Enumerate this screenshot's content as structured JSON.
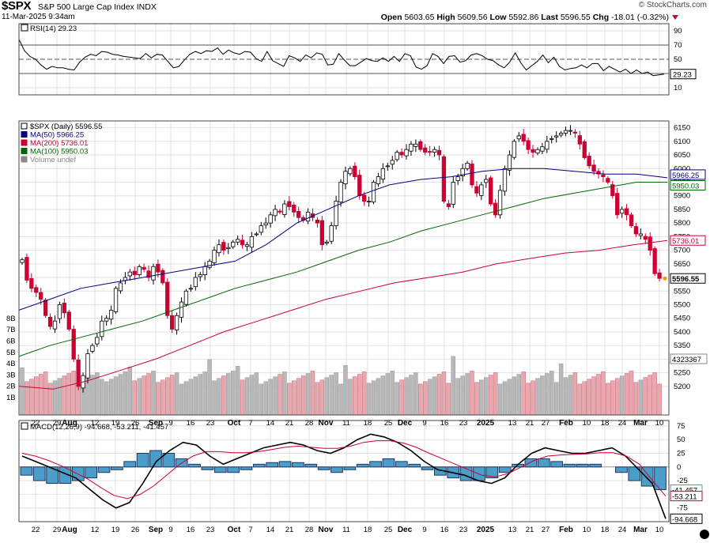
{
  "header": {
    "ticker": "$SPX",
    "name": "S&P 500 Large Cap Index",
    "exchange": "INDX",
    "date": "11-Mar-2025 9:34am",
    "brand": "© StockCharts.com",
    "open_label": "Open",
    "open": "5603.65",
    "high_label": "High",
    "high": "5609.56",
    "low_label": "Low",
    "low": "5592.86",
    "last_label": "Last",
    "last": "5596.55",
    "chg_label": "Chg",
    "chg": "-18.01 (-0.32%)"
  },
  "colors": {
    "up": "#000000",
    "down": "#cc0033",
    "ma50": "#000080",
    "ma200": "#cc0033",
    "ma100": "#006600",
    "vol_up": "#b8b8b8",
    "vol_down": "#e8a8b0",
    "macd_hist": "#4a9ec8"
  },
  "x_axis_labels": [
    "22",
    "29",
    "Aug",
    "12",
    "19",
    "26",
    "Sep",
    "9",
    "16",
    "23",
    "Oct",
    "7",
    "14",
    "21",
    "28",
    "Nov",
    "11",
    "18",
    "25",
    "Dec",
    "9",
    "16",
    "23",
    "2025",
    "13",
    "21",
    "27",
    "Feb",
    "10",
    "18",
    "24",
    "Mar",
    "10"
  ],
  "chart_data": [
    {
      "type": "line",
      "title": "RSI(14) 29.23",
      "y_ticks": [
        90,
        70,
        50,
        30,
        10
      ],
      "ylim": [
        0,
        100
      ],
      "reference_lines": [
        70,
        50,
        30
      ],
      "last_value_tag": "29.23",
      "series": [
        {
          "name": "RSI(14)",
          "values": [
            78,
            62,
            54,
            50,
            42,
            36,
            40,
            38,
            38,
            36,
            35,
            46,
            53,
            57,
            55,
            61,
            60,
            57,
            56,
            54,
            53,
            52,
            51,
            58,
            52,
            57,
            56,
            47,
            38,
            40,
            49,
            57,
            61,
            58,
            62,
            61,
            66,
            57,
            63,
            59,
            57,
            61,
            60,
            51,
            47,
            61,
            48,
            44,
            40,
            55,
            52,
            47,
            56,
            52,
            59,
            57,
            42,
            43,
            58,
            49,
            41,
            41,
            46,
            51,
            48,
            47,
            52,
            47,
            54,
            47,
            58,
            55,
            39,
            36,
            41,
            58,
            54,
            44,
            54,
            55,
            46,
            48,
            56,
            58,
            55,
            50,
            48,
            42,
            38,
            46,
            59,
            45,
            35,
            41,
            47,
            56,
            45,
            53,
            40,
            35,
            37,
            38,
            42,
            38,
            44,
            44,
            34,
            40,
            36,
            32,
            36,
            30,
            35,
            30,
            32,
            27,
            28,
            29.23
          ]
        }
      ]
    },
    {
      "type": "candlestick",
      "title": "$SPX (Daily) 5596.55",
      "ylim": [
        5095,
        6175
      ],
      "y_ticks": [
        5200,
        5250,
        5300,
        5350,
        5400,
        5450,
        5500,
        5550,
        5600,
        5650,
        5700,
        5750,
        5800,
        5850,
        5900,
        5950,
        6000,
        6050,
        6100,
        6150
      ],
      "volume_ticks": [
        "1B",
        "2B",
        "3B",
        "4B",
        "5B",
        "6B",
        "7B",
        "8B"
      ],
      "volume_tag": "4323367",
      "legend": [
        "$SPX (Daily) 5596.55",
        "MA(50) 5966.25",
        "MA(200) 5736.01",
        "MA(100) 5950.03",
        "Volume undef"
      ],
      "value_tags": [
        {
          "label": "5966.25",
          "value": 5966.25,
          "color": "#000080"
        },
        {
          "label": "5950.03",
          "value": 5950.03,
          "color": "#006600"
        },
        {
          "label": "5736.01",
          "value": 5736.01,
          "color": "#cc0033"
        },
        {
          "label": "5596.55",
          "value": 5596.55,
          "color": "#000000",
          "bold": true
        }
      ],
      "closes": [
        5665,
        5590,
        5560,
        5545,
        5520,
        5460,
        5420,
        5440,
        5500,
        5470,
        5410,
        5300,
        5200,
        5240,
        5320,
        5350,
        5380,
        5440,
        5450,
        5480,
        5560,
        5580,
        5600,
        5620,
        5610,
        5640,
        5630,
        5600,
        5640,
        5620,
        5580,
        5460,
        5410,
        5460,
        5510,
        5550,
        5560,
        5600,
        5610,
        5640,
        5660,
        5700,
        5720,
        5700,
        5710,
        5730,
        5740,
        5720,
        5720,
        5750,
        5760,
        5790,
        5800,
        5830,
        5850,
        5840,
        5870,
        5860,
        5840,
        5820,
        5810,
        5840,
        5820,
        5800,
        5720,
        5730,
        5790,
        5880,
        5950,
        5990,
        6000,
        5970,
        5900,
        5880,
        5880,
        5950,
        5970,
        6000,
        6010,
        6030,
        6060,
        6050,
        6070,
        6090,
        6090,
        6070,
        6060,
        6060,
        6070,
        6050,
        5880,
        5860,
        5950,
        5970,
        6000,
        6020,
        5940,
        5910,
        5940,
        5960,
        5870,
        5830,
        5920,
        6000,
        6050,
        6100,
        6120,
        6100,
        6070,
        6060,
        6070,
        6080,
        6100,
        6110,
        6120,
        6130,
        6140,
        6140,
        6130,
        6090,
        6040,
        6010,
        5990,
        5980,
        5970,
        5950,
        5900,
        5830,
        5850,
        5830,
        5790,
        5760,
        5760,
        5740,
        5700,
        5614,
        5596.55
      ],
      "series": [
        {
          "name": "MA(50)",
          "values": [
            5480,
            5520,
            5560,
            5580,
            5600,
            5620,
            5640,
            5660,
            5720,
            5800,
            5850,
            5900,
            5940,
            5960,
            5970,
            5990,
            6000,
            6000,
            5990,
            5980,
            5980,
            5966.25
          ]
        },
        {
          "name": "MA(100)",
          "values": [
            5310,
            5350,
            5380,
            5410,
            5440,
            5480,
            5520,
            5560,
            5590,
            5620,
            5660,
            5700,
            5730,
            5770,
            5800,
            5830,
            5860,
            5890,
            5910,
            5930,
            5950,
            5950.03
          ]
        },
        {
          "name": "MA(200)",
          "values": [
            5200,
            5190,
            5220,
            5260,
            5300,
            5350,
            5400,
            5440,
            5480,
            5520,
            5550,
            5580,
            5600,
            5620,
            5650,
            5670,
            5690,
            5700,
            5720,
            5736.01
          ]
        }
      ]
    },
    {
      "type": "line",
      "title": "MACD(12,26,9) -94.668, -53.211, -41.457",
      "y_ticks": [
        75,
        50,
        25,
        0,
        -25,
        -50,
        -75
      ],
      "ylim": [
        -100,
        85
      ],
      "value_tags": [
        {
          "label": "-41.457",
          "value": -41.457,
          "color": "#4a9ec8"
        },
        {
          "label": "-53.211",
          "value": -53.211,
          "color": "#cc0033"
        },
        {
          "label": "-94.668",
          "value": -94.668,
          "color": "#000000"
        }
      ],
      "series": [
        {
          "name": "MACD",
          "values": [
            20,
            10,
            0,
            -10,
            -20,
            -40,
            -60,
            -75,
            -65,
            -30,
            10,
            30,
            45,
            40,
            20,
            5,
            15,
            25,
            35,
            40,
            45,
            40,
            30,
            25,
            35,
            50,
            60,
            55,
            45,
            30,
            10,
            -5,
            -10,
            -15,
            -25,
            -30,
            -20,
            5,
            25,
            35,
            30,
            25,
            25,
            30,
            35,
            20,
            -5,
            -30,
            -94.668
          ]
        },
        {
          "name": "Signal",
          "values": [
            25,
            20,
            12,
            2,
            -10,
            -22,
            -38,
            -52,
            -58,
            -50,
            -35,
            -15,
            5,
            20,
            28,
            28,
            26,
            26,
            28,
            32,
            36,
            38,
            36,
            34,
            34,
            38,
            45,
            48,
            48,
            44,
            36,
            25,
            15,
            5,
            -5,
            -15,
            -18,
            -12,
            0,
            12,
            20,
            22,
            23,
            24,
            26,
            26,
            20,
            5,
            -25,
            -53.211
          ]
        },
        {
          "name": "Histogram",
          "values": [
            -15,
            -25,
            -30,
            -30,
            -25,
            -20,
            -10,
            -5,
            10,
            25,
            30,
            25,
            15,
            5,
            -5,
            -10,
            -10,
            -5,
            5,
            8,
            10,
            8,
            5,
            -5,
            -10,
            -5,
            5,
            10,
            15,
            10,
            5,
            -5,
            -15,
            -20,
            -25,
            -25,
            -20,
            -10,
            5,
            15,
            15,
            10,
            5,
            5,
            5,
            0,
            -10,
            -25,
            -35,
            -41.457
          ]
        }
      ]
    }
  ]
}
